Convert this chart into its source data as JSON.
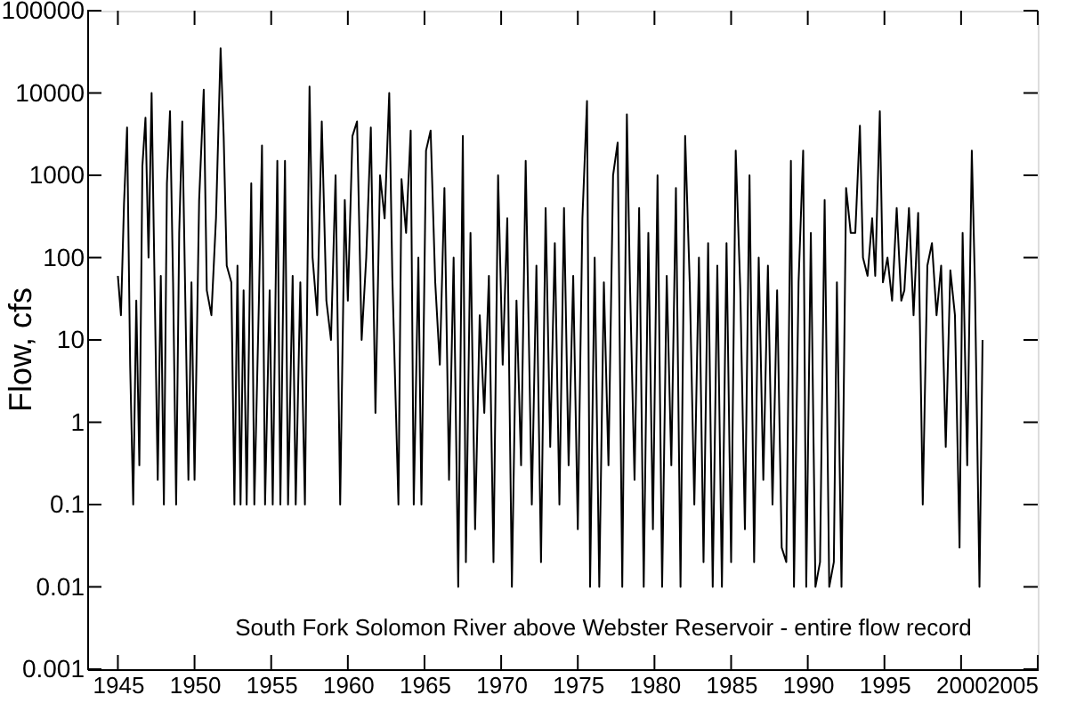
{
  "chart_data": {
    "type": "line",
    "ylabel": "Flow, cfs",
    "annotations": [
      "South Fork Solomon River above Webster Reservoir - entire flow record"
    ],
    "log": true,
    "grid": false,
    "marker": "none",
    "line_style": "solid",
    "xlim": [
      1943,
      2005
    ],
    "xticks": [
      1945,
      1950,
      1955,
      1960,
      1965,
      1970,
      1975,
      1980,
      1985,
      1990,
      1995,
      2000,
      2005
    ],
    "ylim": [
      0.001,
      100000
    ],
    "yticks": [
      0.001,
      0.01,
      0.1,
      1,
      10,
      100,
      1000,
      10000,
      100000
    ],
    "series": [
      {
        "color": "#000000",
        "x": [
          1945.0,
          1945.2,
          1945.4,
          1945.6,
          1945.8,
          1946.0,
          1946.2,
          1946.4,
          1946.6,
          1946.8,
          1947.0,
          1947.2,
          1947.4,
          1947.6,
          1947.8,
          1948.0,
          1948.2,
          1948.4,
          1948.6,
          1948.8,
          1949.0,
          1949.2,
          1949.4,
          1949.6,
          1949.8,
          1950.0,
          1950.3,
          1950.6,
          1950.8,
          1951.1,
          1951.4,
          1951.7,
          1951.9,
          1952.1,
          1952.4,
          1952.6,
          1952.8,
          1953.0,
          1953.2,
          1953.4,
          1953.7,
          1953.9,
          1954.2,
          1954.4,
          1954.6,
          1954.9,
          1955.1,
          1955.4,
          1955.6,
          1955.9,
          1956.1,
          1956.4,
          1956.6,
          1956.9,
          1957.2,
          1957.5,
          1957.7,
          1958.0,
          1958.3,
          1958.6,
          1958.9,
          1959.2,
          1959.5,
          1959.8,
          1960.0,
          1960.3,
          1960.6,
          1960.9,
          1961.2,
          1961.5,
          1961.8,
          1962.1,
          1962.4,
          1962.7,
          1962.9,
          1963.3,
          1963.5,
          1963.8,
          1964.1,
          1964.3,
          1964.6,
          1964.8,
          1965.1,
          1965.4,
          1965.7,
          1966.0,
          1966.3,
          1966.6,
          1966.9,
          1967.2,
          1967.5,
          1967.7,
          1968.0,
          1968.3,
          1968.6,
          1968.9,
          1969.2,
          1969.5,
          1969.8,
          1970.1,
          1970.4,
          1970.7,
          1971.0,
          1971.3,
          1971.6,
          1972.0,
          1972.3,
          1972.6,
          1972.9,
          1973.2,
          1973.5,
          1973.8,
          1974.1,
          1974.4,
          1974.7,
          1975.0,
          1975.3,
          1975.6,
          1975.8,
          1976.1,
          1976.4,
          1976.7,
          1977.0,
          1977.3,
          1977.6,
          1977.9,
          1978.2,
          1978.4,
          1978.7,
          1979.0,
          1979.3,
          1979.6,
          1979.9,
          1980.2,
          1980.5,
          1980.8,
          1981.1,
          1981.4,
          1981.7,
          1982.0,
          1982.3,
          1982.6,
          1982.9,
          1983.2,
          1983.5,
          1983.8,
          1984.1,
          1984.4,
          1984.7,
          1985.0,
          1985.3,
          1985.6,
          1985.9,
          1986.2,
          1986.5,
          1986.8,
          1987.1,
          1987.4,
          1987.7,
          1988.0,
          1988.3,
          1988.6,
          1988.9,
          1989.1,
          1989.4,
          1989.7,
          1989.9,
          1990.2,
          1990.5,
          1990.8,
          1991.1,
          1991.4,
          1991.7,
          1991.9,
          1992.2,
          1992.5,
          1992.8,
          1993.1,
          1993.4,
          1993.6,
          1993.9,
          1994.2,
          1994.4,
          1994.7,
          1994.9,
          1995.2,
          1995.5,
          1995.8,
          1996.1,
          1996.3,
          1996.6,
          1996.9,
          1997.2,
          1997.5,
          1997.8,
          1998.1,
          1998.4,
          1998.7,
          1999.0,
          1999.3,
          1999.6,
          1999.9,
          2000.1,
          2000.4,
          2000.7,
          2000.9,
          2001.2,
          2001.4
        ],
        "values": [
          60,
          20,
          450,
          3800,
          5,
          0.1,
          30,
          0.3,
          1300,
          5000,
          100,
          10000,
          40,
          0.2,
          60,
          0.1,
          800,
          6000,
          50,
          0.1,
          200,
          4500,
          30,
          0.2,
          50,
          0.2,
          500,
          11000,
          40,
          20,
          300,
          35000,
          3000,
          80,
          50,
          0.1,
          80,
          0.1,
          40,
          0.1,
          800,
          0.1,
          30,
          2300,
          0.1,
          40,
          0.1,
          1500,
          0.1,
          1500,
          0.1,
          60,
          0.1,
          50,
          0.1,
          12000,
          100,
          20,
          4500,
          30,
          10,
          1000,
          0.1,
          500,
          30,
          3000,
          4500,
          10,
          100,
          3800,
          1.3,
          1000,
          300,
          10000,
          60,
          0.1,
          900,
          200,
          3500,
          0.1,
          100,
          0.1,
          2000,
          3500,
          50,
          5,
          700,
          0.2,
          100,
          0.01,
          3000,
          0.02,
          200,
          0.05,
          20,
          1.3,
          60,
          0.02,
          1000,
          5,
          300,
          0.01,
          30,
          0.3,
          1500,
          0.1,
          80,
          0.02,
          400,
          0.5,
          150,
          0.1,
          400,
          0.3,
          60,
          0.05,
          300,
          8000,
          0.01,
          100,
          0.01,
          50,
          0.3,
          1000,
          2500,
          0.01,
          5500,
          50,
          0.2,
          400,
          0.01,
          200,
          0.05,
          1000,
          0.01,
          60,
          0.3,
          700,
          0.01,
          3000,
          50,
          0.1,
          100,
          0.02,
          150,
          0.01,
          80,
          0.01,
          150,
          0.02,
          2000,
          40,
          0.05,
          1000,
          0.02,
          100,
          0.2,
          80,
          0.1,
          40,
          0.03,
          0.02,
          1500,
          0.01,
          50,
          2000,
          0.01,
          200,
          0.01,
          0.02,
          500,
          0.01,
          0.02,
          50,
          0.01,
          700,
          200,
          200,
          4000,
          100,
          60,
          300,
          60,
          6000,
          50,
          100,
          30,
          400,
          30,
          40,
          400,
          20,
          350,
          0.1,
          80,
          150,
          20,
          80,
          0.5,
          70,
          20,
          0.03,
          200,
          0.3,
          2000,
          50,
          0.01,
          10
        ]
      }
    ]
  }
}
